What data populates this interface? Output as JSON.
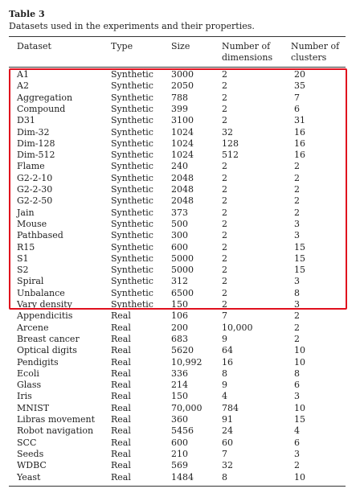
{
  "title": "Table 3",
  "caption": "Datasets used in the experiments and their properties.",
  "headers": {
    "dataset": "Dataset",
    "type": "Type",
    "size": "Size",
    "dims_line1": "Number of",
    "dims_line2": "dimensions",
    "clusters_line1": "Number of",
    "clusters_line2": "clusters"
  },
  "highlight_color": "#e0101e",
  "rows": [
    [
      "A1",
      "Synthetic",
      "3000",
      "2",
      "20"
    ],
    [
      "A2",
      "Synthetic",
      "2050",
      "2",
      "35"
    ],
    [
      "Aggregation",
      "Synthetic",
      "788",
      "2",
      "7"
    ],
    [
      "Compound",
      "Synthetic",
      "399",
      "2",
      "6"
    ],
    [
      "D31",
      "Synthetic",
      "3100",
      "2",
      "31"
    ],
    [
      "Dim-32",
      "Synthetic",
      "1024",
      "32",
      "16"
    ],
    [
      "Dim-128",
      "Synthetic",
      "1024",
      "128",
      "16"
    ],
    [
      "Dim-512",
      "Synthetic",
      "1024",
      "512",
      "16"
    ],
    [
      "Flame",
      "Synthetic",
      "240",
      "2",
      "2"
    ],
    [
      "G2-2-10",
      "Synthetic",
      "2048",
      "2",
      "2"
    ],
    [
      "G2-2-30",
      "Synthetic",
      "2048",
      "2",
      "2"
    ],
    [
      "G2-2-50",
      "Synthetic",
      "2048",
      "2",
      "2"
    ],
    [
      "Jain",
      "Synthetic",
      "373",
      "2",
      "2"
    ],
    [
      "Mouse",
      "Synthetic",
      "500",
      "2",
      "3"
    ],
    [
      "Pathbased",
      "Synthetic",
      "300",
      "2",
      "3"
    ],
    [
      "R15",
      "Synthetic",
      "600",
      "2",
      "15"
    ],
    [
      "S1",
      "Synthetic",
      "5000",
      "2",
      "15"
    ],
    [
      "S2",
      "Synthetic",
      "5000",
      "2",
      "15"
    ],
    [
      "Spiral",
      "Synthetic",
      "312",
      "2",
      "3"
    ],
    [
      "Unbalance",
      "Synthetic",
      "6500",
      "2",
      "8"
    ],
    [
      "Vary density",
      "Synthetic",
      "150",
      "2",
      "3"
    ],
    [
      "Appendicitis",
      "Real",
      "106",
      "7",
      "2"
    ],
    [
      "Arcene",
      "Real",
      "200",
      "10,000",
      "2"
    ],
    [
      "Breast cancer",
      "Real",
      "683",
      "9",
      "2"
    ],
    [
      "Optical digits",
      "Real",
      "5620",
      "64",
      "10"
    ],
    [
      "Pendigits",
      "Real",
      "10,992",
      "16",
      "10"
    ],
    [
      "Ecoli",
      "Real",
      "336",
      "8",
      "8"
    ],
    [
      "Glass",
      "Real",
      "214",
      "9",
      "6"
    ],
    [
      "Iris",
      "Real",
      "150",
      "4",
      "3"
    ],
    [
      "MNIST",
      "Real",
      "70,000",
      "784",
      "10"
    ],
    [
      "Libras movement",
      "Real",
      "360",
      "91",
      "15"
    ],
    [
      "Robot navigation",
      "Real",
      "5456",
      "24",
      "4"
    ],
    [
      "SCC",
      "Real",
      "600",
      "60",
      "6"
    ],
    [
      "Seeds",
      "Real",
      "210",
      "7",
      "3"
    ],
    [
      "WDBC",
      "Real",
      "569",
      "32",
      "2"
    ],
    [
      "Yeast",
      "Real",
      "1484",
      "8",
      "10"
    ]
  ]
}
